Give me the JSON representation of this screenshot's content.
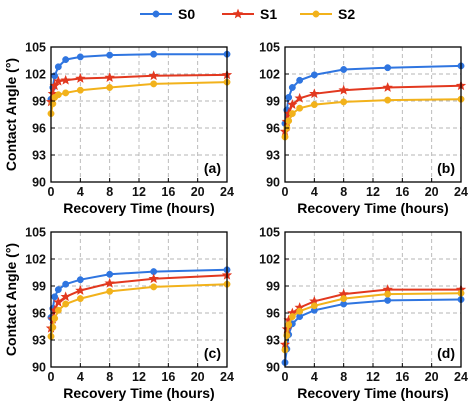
{
  "chart_data": [
    {
      "type": "line",
      "panel_label": "(a)",
      "xlabel": "Recovery Time (hours)",
      "ylabel": "Contact Angle (°)",
      "xlim": [
        0,
        24
      ],
      "ylim": [
        90,
        105
      ],
      "xticks": [
        0,
        4,
        8,
        12,
        16,
        20,
        24
      ],
      "yticks": [
        90,
        93,
        96,
        99,
        102,
        105
      ],
      "grid": true,
      "x": [
        0,
        0.25,
        0.5,
        1,
        2,
        4,
        8,
        14,
        24
      ],
      "series": [
        {
          "name": "S0",
          "values": [
            99.2,
            100.5,
            101.8,
            102.8,
            103.6,
            103.9,
            104.1,
            104.2,
            104.2
          ]
        },
        {
          "name": "S1",
          "values": [
            98.9,
            99.8,
            100.7,
            101.2,
            101.3,
            101.5,
            101.6,
            101.8,
            101.9
          ]
        },
        {
          "name": "S2",
          "values": [
            97.6,
            98.7,
            99.4,
            99.7,
            99.9,
            100.2,
            100.5,
            100.9,
            101.1
          ]
        }
      ]
    },
    {
      "type": "line",
      "panel_label": "(b)",
      "xlabel": "Recovery Time (hours)",
      "ylabel": "",
      "xlim": [
        0,
        24
      ],
      "ylim": [
        90,
        105
      ],
      "xticks": [
        0,
        4,
        8,
        12,
        16,
        20,
        24
      ],
      "yticks": [
        90,
        93,
        96,
        99,
        102,
        105
      ],
      "grid": true,
      "x": [
        0,
        0.25,
        0.5,
        1,
        2,
        4,
        8,
        14,
        24
      ],
      "series": [
        {
          "name": "S0",
          "values": [
            96.5,
            98.0,
            99.4,
            100.5,
            101.3,
            101.9,
            102.5,
            102.7,
            102.9
          ]
        },
        {
          "name": "S1",
          "values": [
            95.6,
            96.7,
            97.6,
            98.6,
            99.3,
            99.8,
            100.2,
            100.5,
            100.7
          ]
        },
        {
          "name": "S2",
          "values": [
            95.0,
            96.0,
            96.8,
            97.6,
            98.2,
            98.6,
            98.9,
            99.1,
            99.2
          ]
        }
      ]
    },
    {
      "type": "line",
      "panel_label": "(c)",
      "xlabel": "Recovery Time (hours)",
      "ylabel": "Contact Angle (°)",
      "xlim": [
        0,
        24
      ],
      "ylim": [
        90,
        105
      ],
      "xticks": [
        0,
        4,
        8,
        12,
        16,
        20,
        24
      ],
      "yticks": [
        90,
        93,
        96,
        99,
        102,
        105
      ],
      "grid": true,
      "x": [
        0,
        0.25,
        0.5,
        1,
        2,
        4,
        8,
        14,
        24
      ],
      "series": [
        {
          "name": "S0",
          "values": [
            95.5,
            96.5,
            97.8,
            98.6,
            99.2,
            99.7,
            100.3,
            100.6,
            100.8
          ]
        },
        {
          "name": "S1",
          "values": [
            94.3,
            95.3,
            96.3,
            97.2,
            97.8,
            98.5,
            99.3,
            99.8,
            100.2
          ]
        },
        {
          "name": "S2",
          "values": [
            93.4,
            94.4,
            95.4,
            96.3,
            97.0,
            97.6,
            98.4,
            98.9,
            99.2
          ]
        }
      ]
    },
    {
      "type": "line",
      "panel_label": "(d)",
      "xlabel": "Recovery Time (hours)",
      "ylabel": "",
      "xlim": [
        0,
        24
      ],
      "ylim": [
        90,
        105
      ],
      "xticks": [
        0,
        4,
        8,
        12,
        16,
        20,
        24
      ],
      "yticks": [
        90,
        93,
        96,
        99,
        102,
        105
      ],
      "grid": true,
      "x": [
        0,
        0.25,
        0.5,
        1,
        2,
        4,
        8,
        14,
        24
      ],
      "series": [
        {
          "name": "S0",
          "values": [
            90.5,
            92.0,
            93.6,
            94.8,
            95.6,
            96.3,
            97.0,
            97.4,
            97.5
          ]
        },
        {
          "name": "S1",
          "values": [
            92.5,
            94.2,
            95.2,
            96.0,
            96.6,
            97.3,
            98.1,
            98.6,
            98.6
          ]
        },
        {
          "name": "S2",
          "values": [
            91.9,
            93.5,
            94.7,
            95.6,
            96.2,
            96.8,
            97.6,
            98.1,
            98.2
          ]
        }
      ]
    }
  ],
  "legend": {
    "position": "top-center",
    "items": [
      {
        "name": "S0",
        "color": "#2f75e0",
        "marker": "circle"
      },
      {
        "name": "S1",
        "color": "#e2381f",
        "marker": "star"
      },
      {
        "name": "S2",
        "color": "#f2b21b",
        "marker": "circle"
      }
    ]
  }
}
